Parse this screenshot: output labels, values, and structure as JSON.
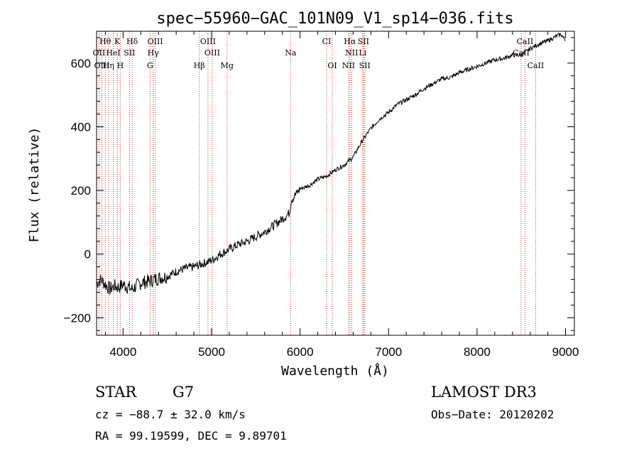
{
  "chart_data": {
    "type": "line",
    "title": "spec−55960−GAC_101N09_V1_sp14−036.fits",
    "xlabel": "Wavelength (Å)",
    "ylabel": "Flux (relative)",
    "xlim": [
      3700,
      9100
    ],
    "ylim": [
      -255,
      700
    ],
    "xticks": [
      4000,
      5000,
      6000,
      7000,
      8000,
      9000
    ],
    "xtick_labels": [
      "4000",
      "5000",
      "6000",
      "7000",
      "8000",
      "9000"
    ],
    "yticks": [
      -200,
      0,
      200,
      400,
      600
    ],
    "ytick_labels": [
      "−200",
      "0",
      "200",
      "400",
      "600"
    ],
    "series": [
      {
        "name": "spectrum",
        "x": [
          3700,
          3750,
          3800,
          3850,
          3900,
          3950,
          4000,
          4100,
          4200,
          4300,
          4400,
          4500,
          4600,
          4700,
          4800,
          4900,
          5000,
          5100,
          5200,
          5300,
          5400,
          5500,
          5600,
          5700,
          5800,
          5880,
          5900,
          6000,
          6100,
          6200,
          6300,
          6400,
          6500,
          6600,
          6650,
          6700,
          6800,
          6900,
          7000,
          7100,
          7200,
          7300,
          7400,
          7500,
          7600,
          7700,
          7800,
          7900,
          8000,
          8100,
          8200,
          8300,
          8400,
          8500,
          8600,
          8700,
          8800,
          8900,
          8950,
          9000
        ],
        "y": [
          -90,
          -80,
          -95,
          -110,
          -100,
          -105,
          -95,
          -110,
          -90,
          -85,
          -75,
          -70,
          -55,
          -45,
          -40,
          -30,
          -20,
          0,
          15,
          30,
          40,
          55,
          70,
          90,
          110,
          130,
          170,
          205,
          215,
          235,
          245,
          265,
          280,
          305,
          330,
          355,
          395,
          425,
          445,
          470,
          485,
          500,
          520,
          535,
          550,
          555,
          570,
          580,
          590,
          600,
          610,
          615,
          625,
          625,
          645,
          660,
          670,
          685,
          690,
          670
        ]
      }
    ],
    "line_labels": [
      {
        "label": "Hθ",
        "wavelength": 3798
      },
      {
        "label": "K",
        "wavelength": 3934
      },
      {
        "label": "Hδ",
        "wavelength": 4102
      },
      {
        "label": "OIII",
        "wavelength": 4363
      },
      {
        "label": "OIII",
        "wavelength": 4959
      },
      {
        "label": "CI",
        "wavelength": 6300
      },
      {
        "label": "Hα",
        "wavelength": 6563
      },
      {
        "label": "SII",
        "wavelength": 6716
      },
      {
        "label": "CaII",
        "wavelength": 8542
      },
      {
        "label": "OII",
        "wavelength": 3727
      },
      {
        "label": "HeI",
        "wavelength": 3889
      },
      {
        "label": "SII",
        "wavelength": 4072
      },
      {
        "label": "Hγ",
        "wavelength": 4340
      },
      {
        "label": "OIII",
        "wavelength": 5007
      },
      {
        "label": "Na",
        "wavelength": 5893
      },
      {
        "label": "NII",
        "wavelength": 6583
      },
      {
        "label": "Li",
        "wavelength": 6708
      },
      {
        "label": "CaII",
        "wavelength": 8498
      },
      {
        "label": "OIII",
        "wavelength": 3760
      },
      {
        "label": "Hη",
        "wavelength": 3835
      },
      {
        "label": "H",
        "wavelength": 3968
      },
      {
        "label": "G",
        "wavelength": 4305
      },
      {
        "label": "Hβ",
        "wavelength": 4861
      },
      {
        "label": "Mg",
        "wavelength": 5175
      },
      {
        "label": "OI",
        "wavelength": 6364
      },
      {
        "label": "NII",
        "wavelength": 6548
      },
      {
        "label": "SII",
        "wavelength": 6731
      },
      {
        "label": "CaII",
        "wavelength": 8662
      }
    ]
  },
  "info": {
    "object_class": "STAR",
    "subclass": "G7",
    "survey": "LAMOST DR3",
    "redshift": "cz = −88.7 ± 32.0 km/s",
    "obs_date": "Obs−Date: 20120202",
    "coords": "RA =  99.19599, DEC =   9.89701"
  }
}
